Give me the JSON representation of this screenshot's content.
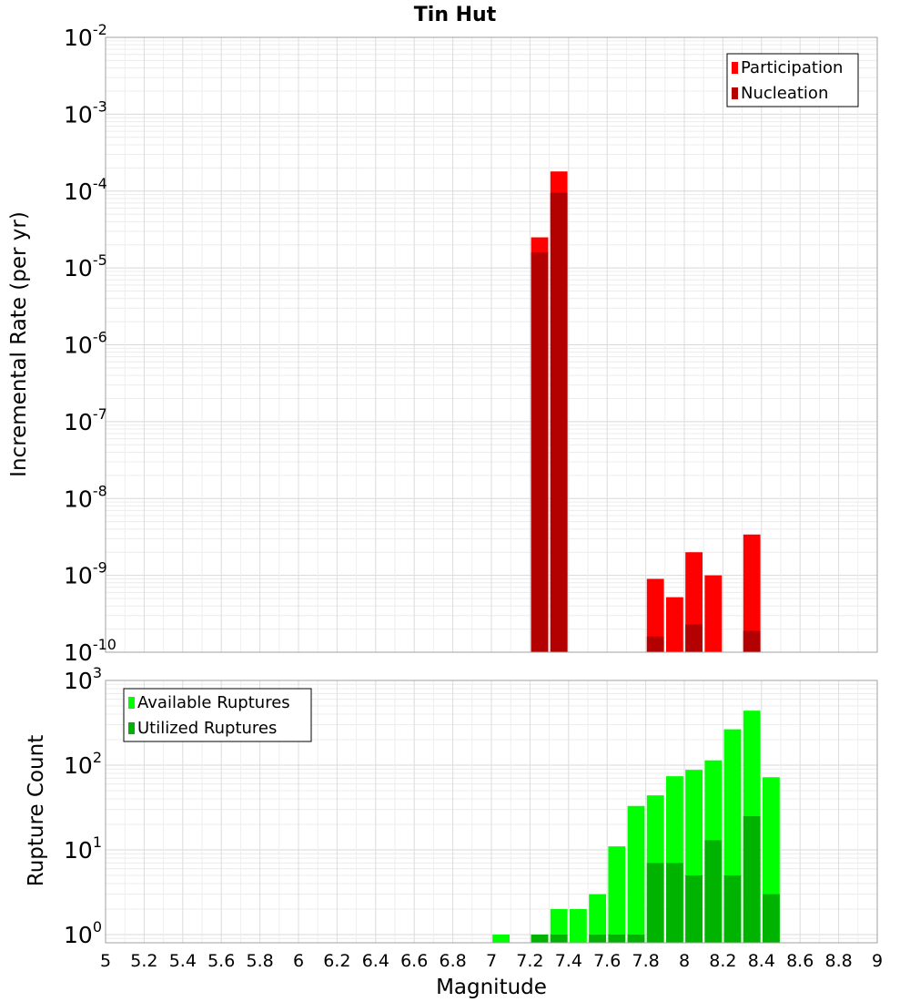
{
  "chart_data": [
    {
      "type": "bar",
      "title": "Tin Hut",
      "xlabel": "",
      "ylabel": "Incremental Rate (per yr)",
      "y_scale": "log",
      "ylim": [
        1e-10,
        0.01
      ],
      "xlim": [
        5,
        9
      ],
      "bin_width": 0.1,
      "grid": true,
      "legend_position": "top-right",
      "y_tick_labels": [
        {
          "base": "10",
          "exp": "-10"
        },
        {
          "base": "10",
          "exp": "-9"
        },
        {
          "base": "10",
          "exp": "-8"
        },
        {
          "base": "10",
          "exp": "-7"
        },
        {
          "base": "10",
          "exp": "-6"
        },
        {
          "base": "10",
          "exp": "-5"
        },
        {
          "base": "10",
          "exp": "-4"
        },
        {
          "base": "10",
          "exp": "-3"
        },
        {
          "base": "10",
          "exp": "-2"
        }
      ],
      "series": [
        {
          "name": "Participation",
          "color": "#ff0000",
          "points": [
            [
              7.25,
              2.5e-05
            ],
            [
              7.35,
              0.00018
            ],
            [
              7.85,
              9e-10
            ],
            [
              7.95,
              5.2e-10
            ],
            [
              8.05,
              2e-09
            ],
            [
              8.15,
              1e-09
            ],
            [
              8.35,
              3.4e-09
            ]
          ]
        },
        {
          "name": "Nucleation",
          "color": "#b30000",
          "points": [
            [
              7.25,
              1.6e-05
            ],
            [
              7.35,
              9.5e-05
            ],
            [
              7.85,
              1.6e-10
            ],
            [
              8.05,
              2.3e-10
            ],
            [
              8.35,
              1.9e-10
            ]
          ]
        }
      ]
    },
    {
      "type": "bar",
      "title": "",
      "xlabel": "Magnitude",
      "ylabel": "Rupture Count",
      "y_scale": "log",
      "ylim": [
        0.8,
        1000
      ],
      "xlim": [
        5,
        9
      ],
      "bin_width": 0.1,
      "grid": true,
      "legend_position": "top-left",
      "x_tick_labels": [
        "5",
        "5.2",
        "5.4",
        "5.6",
        "5.8",
        "6",
        "6.2",
        "6.4",
        "6.6",
        "6.8",
        "7",
        "7.2",
        "7.4",
        "7.6",
        "7.8",
        "8",
        "8.2",
        "8.4",
        "8.6",
        "8.8",
        "9"
      ],
      "y_tick_labels": [
        {
          "base": "10",
          "exp": "0"
        },
        {
          "base": "10",
          "exp": "1"
        },
        {
          "base": "10",
          "exp": "2"
        },
        {
          "base": "10",
          "exp": "3"
        }
      ],
      "series": [
        {
          "name": "Available Ruptures",
          "color": "#00ff00",
          "points": [
            [
              7.05,
              1
            ],
            [
              7.25,
              1
            ],
            [
              7.35,
              2
            ],
            [
              7.45,
              2
            ],
            [
              7.55,
              3
            ],
            [
              7.65,
              11
            ],
            [
              7.75,
              33
            ],
            [
              7.85,
              44
            ],
            [
              7.95,
              74
            ],
            [
              8.05,
              88
            ],
            [
              8.15,
              114
            ],
            [
              8.25,
              265
            ],
            [
              8.35,
              440
            ],
            [
              8.45,
              72
            ]
          ]
        },
        {
          "name": "Utilized Ruptures",
          "color": "#00b300",
          "points": [
            [
              7.25,
              1
            ],
            [
              7.35,
              1
            ],
            [
              7.55,
              1
            ],
            [
              7.65,
              1
            ],
            [
              7.75,
              1
            ],
            [
              7.85,
              7
            ],
            [
              7.95,
              7
            ],
            [
              8.05,
              5
            ],
            [
              8.15,
              13
            ],
            [
              8.25,
              5
            ],
            [
              8.35,
              25
            ],
            [
              8.45,
              3
            ]
          ]
        }
      ]
    }
  ]
}
